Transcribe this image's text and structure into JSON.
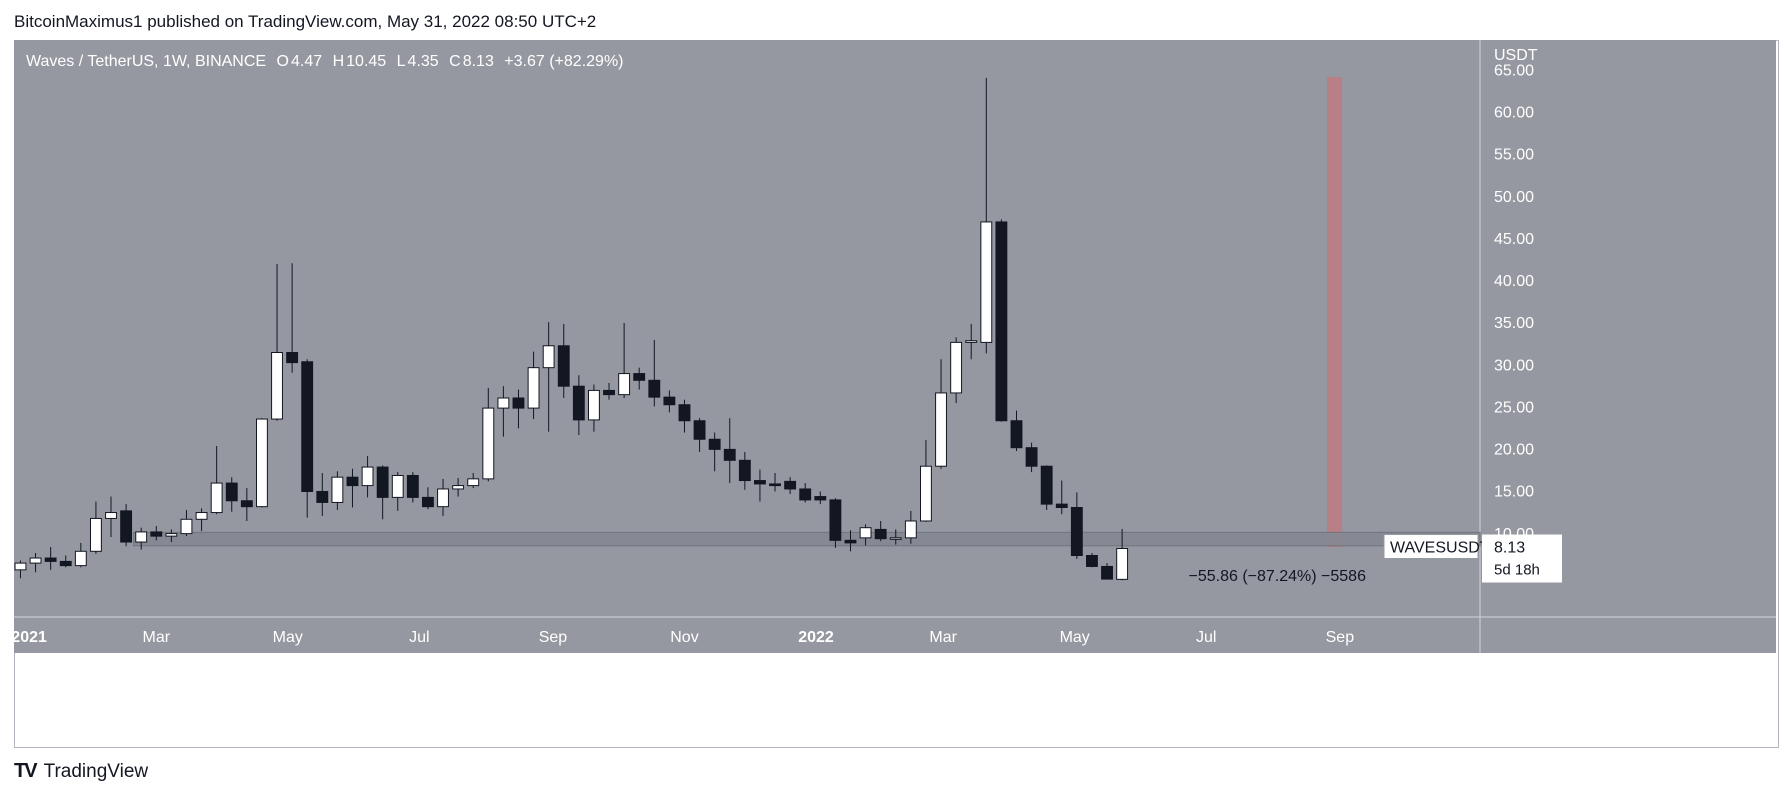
{
  "header": {
    "publisher_line": "BitcoinMaximus1 published on TradingView.com, May 31, 2022 08:50 UTC+2"
  },
  "legend": {
    "symbol": "Waves / TetherUS, 1W, BINANCE",
    "o_label": "O",
    "o_value": "4.47",
    "h_label": "H",
    "h_value": "10.45",
    "l_label": "L",
    "l_value": "4.35",
    "c_label": "C",
    "c_value": "8.13",
    "change": "+3.67 (+82.29%)"
  },
  "footer": {
    "logo": "TV",
    "brand": "TradingView"
  },
  "colors": {
    "plot_bg": "#9598a1",
    "up_body": "#ffffff",
    "down_body": "#131722",
    "wick": "#131722",
    "highlight_bar": "#c4777e",
    "support_zone": "#858892",
    "axis_text": "#ffffff"
  },
  "chart_data": {
    "type": "candlestick",
    "title": "Waves / TetherUS, 1W, BINANCE",
    "ylabel": "USDT",
    "y_scale": "linear",
    "ylim": [
      0,
      68.5
    ],
    "y_ticks": [
      10,
      15,
      20,
      25,
      30,
      35,
      40,
      45,
      50,
      55,
      60,
      65
    ],
    "y_tick_labels": [
      "10.00",
      "15.00",
      "20.00",
      "25.00",
      "30.00",
      "35.00",
      "40.00",
      "45.00",
      "50.00",
      "55.00",
      "60.00",
      "65.00"
    ],
    "x_ticks": [
      {
        "label": "2021",
        "date": "2021-01-01"
      },
      {
        "label": "Mar",
        "date": "2021-03-01"
      },
      {
        "label": "May",
        "date": "2021-05-01"
      },
      {
        "label": "Jul",
        "date": "2021-07-01"
      },
      {
        "label": "Sep",
        "date": "2021-09-01"
      },
      {
        "label": "Nov",
        "date": "2021-11-01"
      },
      {
        "label": "2022",
        "date": "2022-01-01"
      },
      {
        "label": "Mar",
        "date": "2022-03-01"
      },
      {
        "label": "May",
        "date": "2022-05-01"
      },
      {
        "label": "Jul",
        "date": "2022-07-01"
      },
      {
        "label": "Sep",
        "date": "2022-09-01"
      }
    ],
    "xlim": [
      "2020-12-25",
      "2022-11-05"
    ],
    "candles": [
      {
        "date": "2020-12-28",
        "o": 5.6,
        "h": 6.7,
        "l": 4.6,
        "c": 6.4
      },
      {
        "date": "2021-01-04",
        "o": 6.4,
        "h": 7.6,
        "l": 5.3,
        "c": 7.0
      },
      {
        "date": "2021-01-11",
        "o": 7.0,
        "h": 8.3,
        "l": 5.6,
        "c": 6.6
      },
      {
        "date": "2021-01-18",
        "o": 6.6,
        "h": 7.3,
        "l": 5.9,
        "c": 6.1
      },
      {
        "date": "2021-01-25",
        "o": 6.1,
        "h": 8.8,
        "l": 5.9,
        "c": 7.8
      },
      {
        "date": "2021-02-01",
        "o": 7.8,
        "h": 13.7,
        "l": 7.5,
        "c": 11.7
      },
      {
        "date": "2021-02-08",
        "o": 11.7,
        "h": 14.3,
        "l": 9.5,
        "c": 12.4
      },
      {
        "date": "2021-02-15",
        "o": 12.6,
        "h": 13.4,
        "l": 8.4,
        "c": 8.9
      },
      {
        "date": "2021-02-22",
        "o": 8.9,
        "h": 10.6,
        "l": 8.0,
        "c": 10.1
      },
      {
        "date": "2021-03-01",
        "o": 10.1,
        "h": 10.8,
        "l": 9.1,
        "c": 9.6
      },
      {
        "date": "2021-03-08",
        "o": 9.6,
        "h": 10.4,
        "l": 8.9,
        "c": 9.9
      },
      {
        "date": "2021-03-15",
        "o": 9.9,
        "h": 12.7,
        "l": 9.6,
        "c": 11.6
      },
      {
        "date": "2021-03-22",
        "o": 11.6,
        "h": 12.9,
        "l": 10.2,
        "c": 12.4
      },
      {
        "date": "2021-03-29",
        "o": 12.4,
        "h": 20.3,
        "l": 12.2,
        "c": 15.9
      },
      {
        "date": "2021-04-05",
        "o": 15.9,
        "h": 16.6,
        "l": 12.5,
        "c": 13.8
      },
      {
        "date": "2021-04-12",
        "o": 13.8,
        "h": 15.3,
        "l": 11.4,
        "c": 13.1
      },
      {
        "date": "2021-04-19",
        "o": 13.1,
        "h": 23.6,
        "l": 13.0,
        "c": 23.5
      },
      {
        "date": "2021-04-26",
        "o": 23.5,
        "h": 41.9,
        "l": 23.3,
        "c": 31.4
      },
      {
        "date": "2021-05-03",
        "o": 31.4,
        "h": 42.0,
        "l": 29.0,
        "c": 30.2
      },
      {
        "date": "2021-05-10",
        "o": 30.3,
        "h": 30.6,
        "l": 11.8,
        "c": 14.9
      },
      {
        "date": "2021-05-17",
        "o": 14.9,
        "h": 17.1,
        "l": 12.0,
        "c": 13.6
      },
      {
        "date": "2021-05-24",
        "o": 13.6,
        "h": 17.3,
        "l": 12.7,
        "c": 16.6
      },
      {
        "date": "2021-05-31",
        "o": 16.6,
        "h": 17.6,
        "l": 13.0,
        "c": 15.6
      },
      {
        "date": "2021-06-07",
        "o": 15.6,
        "h": 19.1,
        "l": 14.2,
        "c": 17.8
      },
      {
        "date": "2021-06-14",
        "o": 17.8,
        "h": 18.0,
        "l": 11.6,
        "c": 14.2
      },
      {
        "date": "2021-06-21",
        "o": 14.2,
        "h": 17.2,
        "l": 12.6,
        "c": 16.8
      },
      {
        "date": "2021-06-28",
        "o": 16.8,
        "h": 17.2,
        "l": 13.6,
        "c": 14.2
      },
      {
        "date": "2021-07-05",
        "o": 14.2,
        "h": 15.4,
        "l": 12.8,
        "c": 13.1
      },
      {
        "date": "2021-07-12",
        "o": 13.1,
        "h": 16.4,
        "l": 12.0,
        "c": 15.2
      },
      {
        "date": "2021-07-19",
        "o": 15.2,
        "h": 16.5,
        "l": 14.3,
        "c": 15.6
      },
      {
        "date": "2021-07-26",
        "o": 15.6,
        "h": 17.1,
        "l": 15.3,
        "c": 16.4
      },
      {
        "date": "2021-08-02",
        "o": 16.4,
        "h": 27.2,
        "l": 16.1,
        "c": 24.8
      },
      {
        "date": "2021-08-09",
        "o": 24.8,
        "h": 27.4,
        "l": 21.4,
        "c": 26.0
      },
      {
        "date": "2021-08-16",
        "o": 26.0,
        "h": 27.0,
        "l": 22.4,
        "c": 24.8
      },
      {
        "date": "2021-08-23",
        "o": 24.8,
        "h": 31.5,
        "l": 23.5,
        "c": 29.6
      },
      {
        "date": "2021-08-30",
        "o": 29.6,
        "h": 35.0,
        "l": 22.0,
        "c": 32.2
      },
      {
        "date": "2021-09-06",
        "o": 32.2,
        "h": 34.8,
        "l": 26.0,
        "c": 27.4
      },
      {
        "date": "2021-09-13",
        "o": 27.4,
        "h": 28.7,
        "l": 21.6,
        "c": 23.4
      },
      {
        "date": "2021-09-20",
        "o": 23.4,
        "h": 27.6,
        "l": 22.0,
        "c": 26.9
      },
      {
        "date": "2021-09-27",
        "o": 26.9,
        "h": 27.8,
        "l": 25.8,
        "c": 26.4
      },
      {
        "date": "2021-10-04",
        "o": 26.4,
        "h": 34.9,
        "l": 26.0,
        "c": 28.9
      },
      {
        "date": "2021-10-11",
        "o": 28.9,
        "h": 29.6,
        "l": 27.0,
        "c": 28.1
      },
      {
        "date": "2021-10-18",
        "o": 28.1,
        "h": 32.9,
        "l": 25.0,
        "c": 26.1
      },
      {
        "date": "2021-10-25",
        "o": 26.1,
        "h": 26.9,
        "l": 24.3,
        "c": 25.2
      },
      {
        "date": "2021-11-01",
        "o": 25.2,
        "h": 25.8,
        "l": 21.9,
        "c": 23.3
      },
      {
        "date": "2021-11-08",
        "o": 23.3,
        "h": 23.6,
        "l": 19.6,
        "c": 21.1
      },
      {
        "date": "2021-11-15",
        "o": 21.1,
        "h": 21.9,
        "l": 17.3,
        "c": 19.9
      },
      {
        "date": "2021-11-22",
        "o": 19.9,
        "h": 23.6,
        "l": 15.9,
        "c": 18.6
      },
      {
        "date": "2021-11-29",
        "o": 18.6,
        "h": 19.6,
        "l": 15.1,
        "c": 16.2
      },
      {
        "date": "2021-12-06",
        "o": 16.2,
        "h": 17.5,
        "l": 13.7,
        "c": 15.8
      },
      {
        "date": "2021-12-13",
        "o": 15.8,
        "h": 17.1,
        "l": 14.9,
        "c": 15.6
      },
      {
        "date": "2021-12-20",
        "o": 16.1,
        "h": 16.6,
        "l": 14.6,
        "c": 15.2
      },
      {
        "date": "2021-12-27",
        "o": 15.2,
        "h": 15.9,
        "l": 13.6,
        "c": 13.9
      },
      {
        "date": "2022-01-03",
        "o": 14.3,
        "h": 14.9,
        "l": 13.4,
        "c": 13.9
      },
      {
        "date": "2022-01-10",
        "o": 13.9,
        "h": 14.1,
        "l": 8.2,
        "c": 9.1
      },
      {
        "date": "2022-01-17",
        "o": 9.1,
        "h": 10.3,
        "l": 7.8,
        "c": 8.8
      },
      {
        "date": "2022-01-24",
        "o": 9.4,
        "h": 11.0,
        "l": 8.5,
        "c": 10.6
      },
      {
        "date": "2022-01-31",
        "o": 10.4,
        "h": 11.4,
        "l": 9.0,
        "c": 9.3
      },
      {
        "date": "2022-02-07",
        "o": 9.3,
        "h": 10.4,
        "l": 8.6,
        "c": 9.4
      },
      {
        "date": "2022-02-14",
        "o": 9.4,
        "h": 12.6,
        "l": 8.7,
        "c": 11.4
      },
      {
        "date": "2022-02-21",
        "o": 11.4,
        "h": 21.0,
        "l": 11.3,
        "c": 17.9
      },
      {
        "date": "2022-02-28",
        "o": 17.9,
        "h": 30.6,
        "l": 17.6,
        "c": 26.6
      },
      {
        "date": "2022-03-07",
        "o": 26.6,
        "h": 33.2,
        "l": 25.4,
        "c": 32.6
      },
      {
        "date": "2022-03-14",
        "o": 32.6,
        "h": 34.8,
        "l": 30.6,
        "c": 32.8
      },
      {
        "date": "2022-03-21",
        "o": 32.6,
        "h": 64.0,
        "l": 31.3,
        "c": 46.9
      },
      {
        "date": "2022-03-28",
        "o": 46.9,
        "h": 47.2,
        "l": 23.2,
        "c": 23.3
      },
      {
        "date": "2022-04-04",
        "o": 23.3,
        "h": 24.5,
        "l": 19.7,
        "c": 20.1
      },
      {
        "date": "2022-04-11",
        "o": 20.1,
        "h": 20.7,
        "l": 17.2,
        "c": 17.9
      },
      {
        "date": "2022-04-18",
        "o": 17.9,
        "h": 18.0,
        "l": 12.7,
        "c": 13.4
      },
      {
        "date": "2022-04-25",
        "o": 13.4,
        "h": 16.2,
        "l": 12.2,
        "c": 13.0
      },
      {
        "date": "2022-05-02",
        "o": 13.0,
        "h": 14.8,
        "l": 6.9,
        "c": 7.3
      },
      {
        "date": "2022-05-09",
        "o": 7.3,
        "h": 7.6,
        "l": 5.9,
        "c": 6.0
      },
      {
        "date": "2022-05-16",
        "o": 6.0,
        "h": 6.4,
        "l": 4.5,
        "c": 4.5
      },
      {
        "date": "2022-05-23",
        "o": 4.47,
        "h": 10.45,
        "l": 4.35,
        "c": 8.13
      }
    ],
    "support_zone": {
      "y0": 8.45,
      "y1": 10.05
    },
    "highlight_bar": {
      "x0": "2022-08-26",
      "x1": "2022-09-02",
      "y0": 8.3,
      "y1": 64.1
    },
    "measure_label": "−55.86 (−87.24%) −5586",
    "last_price_tag": {
      "symbol": "WAVESUSDT",
      "price": "8.13",
      "countdown": "5d 18h"
    }
  }
}
